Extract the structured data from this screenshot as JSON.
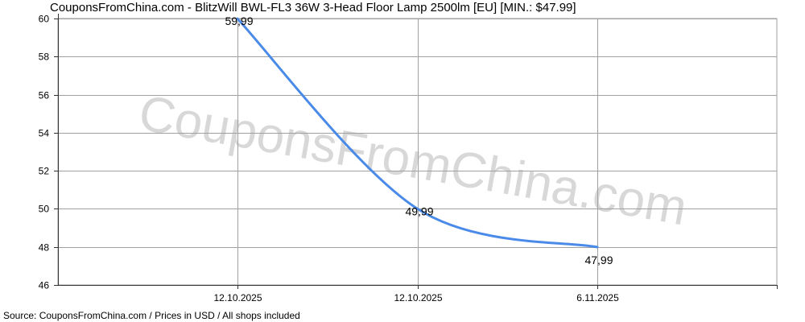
{
  "title": "CouponsFromChina.com - BlitzWill BWL-FL3 36W 3-Head Floor Lamp 2500lm [EU] [MIN.: $47.99]",
  "footer": "Source: CouponsFromChina.com / Prices in USD / All shops included",
  "watermark": "CouponsFromChina.com",
  "colors": {
    "line": "#4a8ae8",
    "grid": "#a0a0a0",
    "axis": "#333333",
    "watermark": "#d8d8d8"
  },
  "chart_data": {
    "type": "line",
    "title": "CouponsFromChina.com - BlitzWill BWL-FL3 36W 3-Head Floor Lamp 2500lm [EU] [MIN.: $47.99]",
    "xlabel": "",
    "ylabel": "",
    "ylim": [
      46,
      60
    ],
    "yticks": [
      46,
      48,
      50,
      52,
      54,
      56,
      58,
      60
    ],
    "x_tick_labels": [
      "12.10.2025",
      "12.10.2025",
      "6.11.2025"
    ],
    "grid": true,
    "series": [
      {
        "points": [
          {
            "x_index": 0,
            "y": 59.99,
            "label": "59,99"
          },
          {
            "x_index": 1,
            "y": 49.99,
            "label": "49,99"
          },
          {
            "x_index": 2,
            "y": 47.99,
            "label": "47,99"
          }
        ]
      }
    ]
  }
}
